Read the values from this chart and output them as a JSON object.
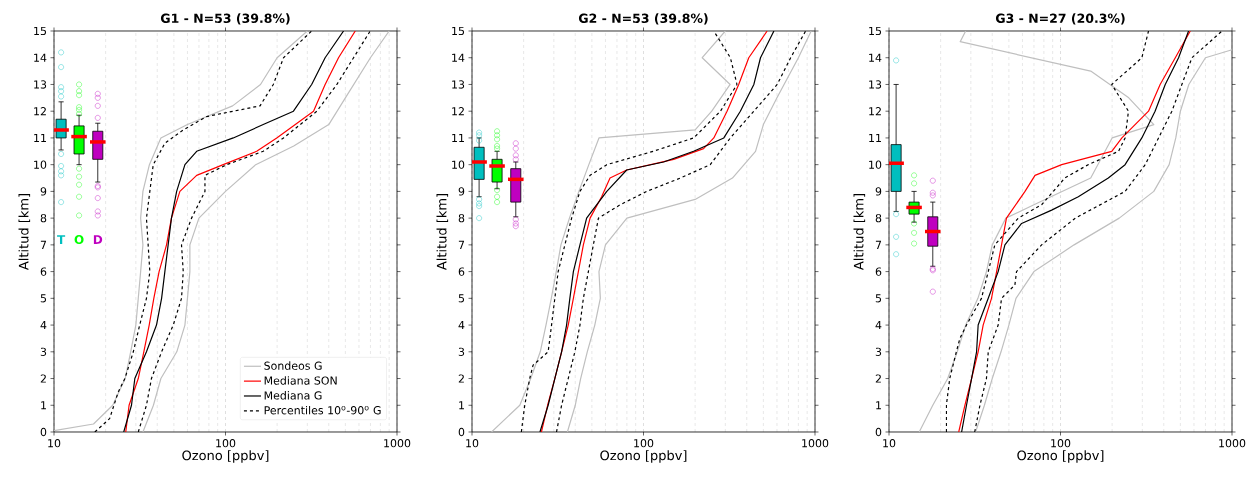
{
  "chart_data": [
    {
      "type": "line",
      "title": "G1 - N=53 (39.8%)",
      "xlabel": "Ozono [ppbv]",
      "ylabel": "Altitud [km]",
      "log": "x",
      "grid": "x",
      "legend": "bottom right",
      "xlim": [
        10,
        1000
      ],
      "xticks": [
        10,
        100,
        1000
      ],
      "ylim": [
        0,
        15
      ],
      "yticks": [
        0,
        1,
        2,
        3,
        4,
        5,
        6,
        7,
        8,
        9,
        10,
        11,
        12,
        13,
        14,
        15
      ],
      "annotations": [
        "T",
        "O",
        "D"
      ],
      "series": [
        {
          "name": "Sondeos G",
          "color": "#bfbfbf",
          "x": [
            10,
            17,
            22,
            26,
            28,
            30,
            31,
            32,
            33,
            32,
            33,
            36,
            42,
            60,
            110,
            160,
            200,
            300
          ],
          "values": [
            0.05,
            0.3,
            1,
            2,
            3,
            4,
            5,
            6,
            7,
            8,
            9,
            10,
            11,
            11.5,
            12.2,
            13,
            14,
            15
          ]
        },
        {
          "color": "#bfbfbf",
          "x": [
            33,
            38,
            42,
            52,
            58,
            60,
            62,
            62,
            70,
            100,
            150,
            250,
            400,
            500,
            700,
            900
          ],
          "values": [
            0,
            1,
            2,
            3,
            4,
            5,
            6,
            7,
            8,
            9,
            10,
            10.7,
            11.5,
            12.5,
            14,
            15
          ]
        },
        {
          "name": "Mediana SON",
          "color": "#ff0000",
          "x": [
            26.2,
            27.4,
            31,
            33.4,
            35.9,
            38.2,
            41,
            45.3,
            48.4,
            54.2,
            67.9,
            97,
            152,
            199,
            326,
            381,
            456,
            571
          ],
          "values": [
            0,
            1,
            2,
            3,
            4,
            5,
            6,
            7,
            8,
            9,
            9.6,
            10,
            10.5,
            11,
            12,
            13,
            14,
            15
          ]
        },
        {
          "name": "Mediana G",
          "color": "#000000",
          "x": [
            25.5,
            28.3,
            29.6,
            34.6,
            39.6,
            42.4,
            44.3,
            46.3,
            48.4,
            51.9,
            58,
            67.9,
            111,
            166,
            249,
            318,
            381,
            488
          ],
          "values": [
            0,
            1,
            2,
            3,
            4,
            5,
            6,
            7,
            8,
            9,
            10,
            10.5,
            11,
            11.5,
            12,
            13,
            14,
            15
          ]
        },
        {
          "name": "Percentiles 10$^{o}$-90$^{o}$ G",
          "color": "#000000",
          "line_style": "dashed",
          "x": [
            17.3,
            21.1,
            23.7,
            25.9,
            29,
            31.6,
            34.6,
            36.2,
            35.4,
            34.6,
            36.2,
            37.9,
            44.3,
            56.7,
            77.6,
            159,
            190,
            218,
            318
          ],
          "values": [
            0,
            0.5,
            1.5,
            2,
            3,
            4,
            5,
            6,
            7,
            8,
            9,
            10,
            10.8,
            11.3,
            11.8,
            12.2,
            13,
            14,
            15
          ]
        },
        {
          "color": "#000000",
          "line_style": "dashed",
          "x": [
            31,
            34.6,
            37,
            42.4,
            49.6,
            55.4,
            56.7,
            55.4,
            63.4,
            75.9,
            75.9,
            101.6,
            166,
            218,
            341,
            446,
            558,
            698
          ],
          "values": [
            0,
            1,
            2,
            3,
            4,
            5,
            6,
            7,
            8,
            9,
            9.6,
            10,
            10.5,
            11,
            12,
            13,
            14,
            15
          ]
        },
        {
          "type": "box",
          "x": [
            11,
            14,
            18
          ],
          "colors": [
            "#00bfbf",
            "#00ff00",
            "#bf00bf"
          ],
          "boxes": [
            {
              "low": 10.55,
              "q1": 11.0,
              "median": 11.3,
              "q3": 11.7,
              "high": 12.35,
              "outliers": [
                14.2,
                13.65,
                12.9,
                12.75,
                12.55,
                10.4,
                9.95,
                9.75,
                9.6,
                8.6
              ]
            },
            {
              "low": 10.0,
              "q1": 10.4,
              "median": 11.05,
              "q3": 11.45,
              "high": 11.85,
              "outliers": [
                13.0,
                12.75,
                12.6,
                12.15,
                12.05,
                11.9,
                9.85,
                9.55,
                9.25,
                8.8,
                8.1
              ]
            },
            {
              "low": 9.35,
              "q1": 10.2,
              "median": 10.85,
              "q3": 11.25,
              "high": 11.55,
              "outliers": [
                12.65,
                12.5,
                12.2,
                11.75,
                9.2,
                9.15,
                8.75,
                8.25,
                8.1
              ]
            }
          ]
        }
      ]
    },
    {
      "type": "line",
      "title": "G2 - N=53 (39.8%)",
      "xlabel": "Ozono [ppbv]",
      "ylabel": "Altitud [km]",
      "log": "x",
      "grid": "x",
      "xlim": [
        10,
        1000
      ],
      "xticks": [
        10,
        100,
        1000
      ],
      "ylim": [
        0,
        15
      ],
      "yticks": [
        0,
        1,
        2,
        3,
        4,
        5,
        6,
        7,
        8,
        9,
        10,
        11,
        12,
        13,
        14,
        15
      ],
      "series": [
        {
          "color": "#bfbfbf",
          "x": [
            13,
            19,
            22,
            25,
            27,
            29,
            31,
            33,
            37,
            42,
            48,
            55,
            200,
            250,
            320,
            220,
            300
          ],
          "values": [
            0,
            1,
            2,
            3,
            4,
            5,
            6,
            7,
            8,
            9,
            10,
            11,
            11.3,
            12,
            13,
            14,
            15
          ]
        },
        {
          "color": "#bfbfbf",
          "x": [
            36,
            40,
            43,
            47,
            52,
            56,
            55,
            60,
            80,
            200,
            330,
            450,
            500,
            600,
            800,
            950
          ],
          "values": [
            0,
            1,
            2,
            3,
            4,
            5,
            6,
            7,
            8,
            8.7,
            9.5,
            10.5,
            11.5,
            12.5,
            14,
            15
          ]
        },
        {
          "color": "#ff0000",
          "x": [
            25.4,
            27.6,
            30.4,
            33.3,
            36.4,
            39,
            41.7,
            44.6,
            48.8,
            57,
            63.8,
            79.8,
            150,
            224,
            257,
            307,
            359,
            411,
            526
          ],
          "values": [
            0,
            1,
            2,
            3,
            4,
            5,
            6,
            7,
            8,
            8.8,
            9.5,
            9.8,
            10.2,
            10.6,
            11,
            12,
            13,
            14,
            15
          ]
        },
        {
          "color": "#000000",
          "x": [
            24.9,
            27.8,
            30.4,
            33.3,
            35.6,
            37.2,
            39,
            42.6,
            46.6,
            61.1,
            79.8,
            131,
            196,
            294,
            367,
            440,
            481,
            576
          ],
          "values": [
            0,
            1,
            2,
            3,
            4,
            5,
            6,
            7,
            8,
            9,
            9.8,
            10.1,
            10.5,
            11,
            12,
            13,
            14,
            15
          ]
        },
        {
          "color": "#000000",
          "line_style": "dashed",
          "x": [
            19.4,
            20.3,
            21.7,
            22.7,
            27.8,
            29.1,
            30.4,
            31.8,
            34.8,
            38.1,
            42.6,
            48.8,
            61.1,
            114,
            196,
            281,
            351,
            321,
            257
          ],
          "values": [
            0,
            1,
            2,
            2.5,
            3,
            4,
            5,
            6,
            7,
            8,
            9,
            9.6,
            10,
            10.5,
            11,
            12,
            13,
            14,
            15
          ]
        },
        {
          "color": "#000000",
          "line_style": "dashed",
          "x": [
            31.1,
            33.3,
            36.4,
            39.8,
            42.6,
            44.6,
            47.7,
            51,
            54.6,
            73.1,
            104.5,
            164,
            245,
            321,
            440,
            602,
            721,
            882
          ],
          "values": [
            0,
            1,
            2,
            3,
            4,
            5,
            6,
            7,
            8,
            8.5,
            9,
            9.5,
            10,
            11,
            12,
            13,
            14,
            15
          ]
        },
        {
          "type": "box",
          "x": [
            11,
            14,
            18
          ],
          "colors": [
            "#00bfbf",
            "#00ff00",
            "#bf00bf"
          ],
          "boxes": [
            {
              "low": 8.8,
              "q1": 9.45,
              "median": 10.1,
              "q3": 10.65,
              "high": 11.0,
              "outliers": [
                11.2,
                11.1,
                10.9,
                8.7,
                8.55,
                8.45,
                8.0
              ]
            },
            {
              "low": 9.1,
              "q1": 9.35,
              "median": 9.95,
              "q3": 10.2,
              "high": 10.5,
              "outliers": [
                11.25,
                11.1,
                10.95,
                10.7,
                10.6,
                9.05,
                8.8,
                8.6
              ]
            },
            {
              "low": 8.05,
              "q1": 8.6,
              "median": 9.45,
              "q3": 9.85,
              "high": 10.1,
              "outliers": [
                10.8,
                10.6,
                10.35,
                10.2,
                7.95,
                7.8,
                7.7
              ]
            }
          ]
        }
      ]
    },
    {
      "type": "line",
      "title": "G3 - N=27 (20.3%)",
      "xlabel": "Ozono [ppbv]",
      "ylabel": "Altitud [km]",
      "log": "x",
      "grid": "x",
      "xlim": [
        10,
        1000
      ],
      "xticks": [
        10,
        100,
        1000
      ],
      "ylim": [
        0,
        15
      ],
      "yticks": [
        0,
        1,
        2,
        3,
        4,
        5,
        6,
        7,
        8,
        9,
        10,
        11,
        12,
        13,
        14,
        15
      ],
      "series": [
        {
          "color": "#bfbfbf",
          "x": [
            15,
            18,
            22,
            25,
            28,
            33,
            37,
            40,
            48,
            70,
            150,
            200,
            350,
            250,
            150,
            26,
            28
          ],
          "values": [
            0,
            1,
            2,
            3,
            4,
            5,
            6,
            7,
            8,
            8.5,
            9.5,
            11,
            11.5,
            12.5,
            13.5,
            14.6,
            15
          ]
        },
        {
          "color": "#bfbfbf",
          "x": [
            32,
            36,
            40,
            45,
            50,
            55,
            70,
            120,
            220,
            350,
            430,
            470,
            500,
            560,
            700,
            1000
          ],
          "values": [
            0,
            1,
            2,
            3,
            4,
            5,
            6,
            7,
            8,
            9,
            10,
            11,
            12,
            13,
            14,
            14.3
          ]
        },
        {
          "color": "#ff0000",
          "x": [
            25.5,
            27.7,
            30.3,
            33.1,
            35.4,
            39.6,
            42.4,
            45.3,
            48.4,
            62.1,
            71,
            101.6,
            199,
            228,
            326,
            381,
            467,
            571
          ],
          "values": [
            0,
            1,
            2,
            3,
            4,
            5,
            6,
            7,
            8,
            9,
            9.6,
            10,
            10.5,
            11,
            12,
            13,
            14,
            15
          ]
        },
        {
          "color": "#000000",
          "x": [
            26.5,
            28.3,
            30.3,
            32.4,
            33.1,
            37.9,
            43.3,
            47.4,
            59.3,
            88.8,
            127,
            190,
            238,
            298,
            356,
            408,
            488,
            558
          ],
          "values": [
            0,
            1,
            2,
            3,
            4,
            5,
            6,
            7,
            7.8,
            8.3,
            8.8,
            9.5,
            10,
            11,
            12,
            13,
            14,
            15
          ]
        },
        {
          "color": "#000000",
          "line_style": "dashed",
          "x": [
            21.6,
            21.6,
            22.6,
            24.7,
            25.9,
            28.3,
            34.6,
            37.9,
            41.4,
            56.7,
            77.6,
            106,
            145,
            218,
            238,
            249,
            199,
            298,
            326
          ],
          "values": [
            0,
            1,
            2,
            3,
            3.5,
            4,
            5,
            6,
            7,
            8,
            8.5,
            9.5,
            10,
            10.5,
            11,
            12,
            13,
            14,
            15
          ]
        },
        {
          "color": "#000000",
          "line_style": "dashed",
          "x": [
            31.6,
            33.9,
            37,
            37.9,
            43.3,
            45.3,
            54.2,
            55.4,
            77.6,
            122,
            238,
            312,
            373,
            446,
            510,
            584,
            874
          ],
          "values": [
            0,
            1,
            2,
            3,
            4,
            5,
            5.5,
            6,
            7,
            8,
            9,
            10,
            11,
            12,
            13,
            14,
            15
          ]
        },
        {
          "type": "box",
          "x": [
            11,
            14,
            18
          ],
          "colors": [
            "#00bfbf",
            "#00ff00",
            "#bf00bf"
          ],
          "boxes": [
            {
              "low": 8.25,
              "q1": 9.0,
              "median": 10.05,
              "q3": 10.75,
              "high": 13.0,
              "outliers": [
                13.9,
                8.15,
                7.3,
                6.65
              ]
            },
            {
              "low": 7.85,
              "q1": 8.15,
              "median": 8.4,
              "q3": 8.6,
              "high": 9.0,
              "outliers": [
                9.6,
                9.3,
                7.8,
                7.45,
                7.05
              ]
            },
            {
              "low": 6.2,
              "q1": 6.95,
              "median": 7.5,
              "q3": 8.05,
              "high": 8.6,
              "outliers": [
                9.4,
                8.95,
                8.85,
                6.1,
                6.05,
                5.25
              ]
            }
          ]
        }
      ]
    }
  ]
}
